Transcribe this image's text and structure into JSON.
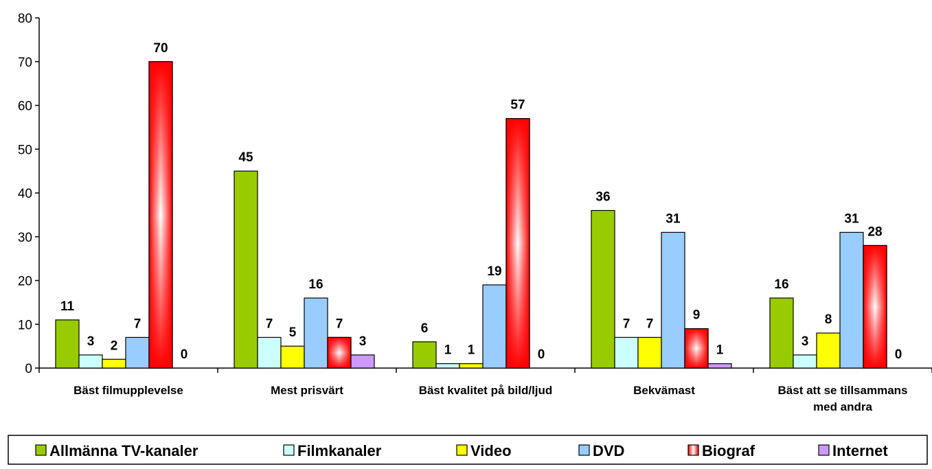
{
  "chart_data": {
    "type": "bar",
    "ylim": [
      0,
      80
    ],
    "yticks": [
      0,
      10,
      20,
      30,
      40,
      50,
      60,
      70,
      80
    ],
    "grid": false,
    "legend_position": "bottom",
    "categories": [
      [
        "Bäst filmupplevelse"
      ],
      [
        "Mest prisvärt"
      ],
      [
        "Bäst kvalitet på bild/ljud"
      ],
      [
        "Bekvämast"
      ],
      [
        "Bäst att se tillsammans",
        "med andra"
      ]
    ],
    "series": [
      {
        "name": "Allmänna TV-kanaler",
        "color": "#99cc00",
        "fill": "solid",
        "values": [
          11,
          45,
          6,
          36,
          16
        ]
      },
      {
        "name": "Filmkanaler",
        "color": "#ccffff",
        "fill": "solid",
        "values": [
          3,
          7,
          1,
          7,
          3
        ]
      },
      {
        "name": "Video",
        "color": "#ffff00",
        "fill": "solid",
        "values": [
          2,
          5,
          1,
          7,
          8
        ]
      },
      {
        "name": "DVD",
        "color": "#99ccff",
        "fill": "solid",
        "values": [
          7,
          16,
          19,
          31,
          31
        ]
      },
      {
        "name": "Biograf",
        "color": "#ff0000",
        "fill": "radial-white-center",
        "values": [
          70,
          7,
          57,
          9,
          28
        ]
      },
      {
        "name": "Internet",
        "color": "#cc99ff",
        "fill": "solid",
        "values": [
          0,
          3,
          0,
          1,
          0
        ]
      }
    ]
  }
}
